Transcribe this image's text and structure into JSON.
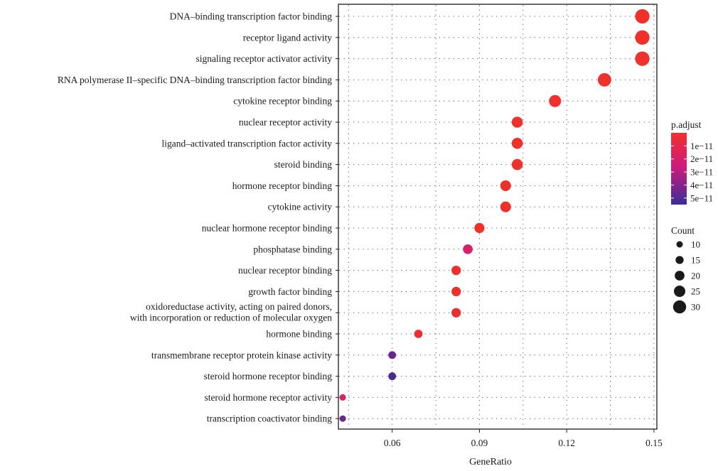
{
  "chart_data": {
    "type": "scatter",
    "xlabel": "GeneRatio",
    "ylabel": "",
    "xlim": [
      0.0415,
      0.151
    ],
    "xticks": [
      "0.06",
      "0.09",
      "0.12",
      "0.15"
    ],
    "xtick_values": [
      0.06,
      0.09,
      0.12,
      0.15
    ],
    "grid": true,
    "legend_position": "right",
    "categories": [
      "DNA–binding transcription factor binding",
      "receptor ligand activity",
      "signaling receptor activator activity",
      "RNA polymerase II–specific DNA–binding transcription factor binding",
      "cytokine receptor binding",
      "nuclear receptor activity",
      "ligand–activated transcription factor activity",
      "steroid binding",
      "hormone receptor binding",
      "cytokine activity",
      "nuclear hormone receptor binding",
      "phosphatase binding",
      "nuclear receptor binding",
      "growth factor binding",
      "oxidoreductase activity, acting on paired donors,\nwith incorporation or reduction of molecular oxygen",
      "hormone binding",
      "transmembrane receptor protein kinase activity",
      "steroid hormone receptor binding",
      "steroid hormone receptor activity",
      "transcription coactivator binding"
    ],
    "gene_ratio": [
      0.146,
      0.146,
      0.146,
      0.133,
      0.116,
      0.103,
      0.103,
      0.103,
      0.099,
      0.099,
      0.09,
      0.086,
      0.082,
      0.082,
      0.082,
      0.069,
      0.06,
      0.06,
      0.043,
      0.043
    ],
    "count": [
      34,
      34,
      34,
      31,
      27,
      24,
      24,
      24,
      23,
      23,
      21,
      20,
      19,
      19,
      19,
      16,
      14,
      14,
      10,
      10
    ],
    "p_adjust": [
      1e-14,
      1e-14,
      1e-14,
      1e-13,
      1e-13,
      1e-13,
      1e-13,
      1e-13,
      1e-13,
      1e-13,
      2e-13,
      2e-11,
      1e-12,
      1e-12,
      3e-12,
      2e-12,
      4.6e-11,
      5.2e-11,
      1.6e-11,
      4.6e-11
    ],
    "color_legend": {
      "title": "p.adjust",
      "labels": [
        "1e−11",
        "2e−11",
        "3e−11",
        "4e−11",
        "5e−11"
      ],
      "values": [
        1e-11,
        2e-11,
        3e-11,
        4e-11,
        5e-11
      ],
      "range": [
        0,
        5.5e-11
      ],
      "color_low": "#F0302A",
      "color_mid": "#D11B7A",
      "color_high": "#3A2C98"
    },
    "size_legend": {
      "title": "Count",
      "labels": [
        "10",
        "15",
        "20",
        "25",
        "30"
      ],
      "values": [
        10,
        15,
        20,
        25,
        30
      ]
    }
  }
}
